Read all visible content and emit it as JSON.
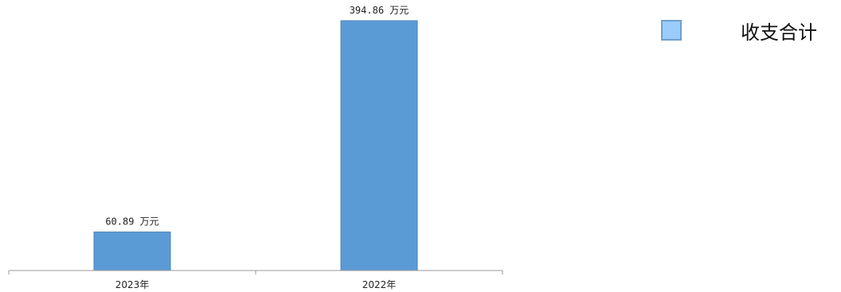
{
  "chart_data": {
    "type": "bar",
    "categories": [
      "2023年",
      "2022年"
    ],
    "series": [
      {
        "name": "收支合计",
        "values": [
          60.89,
          394.86
        ],
        "data_labels": [
          "60.89 万元",
          "394.86 万元"
        ],
        "color": "#5b9bd5"
      }
    ],
    "title": "",
    "xlabel": "",
    "ylabel": "",
    "ylim": [
      0,
      420
    ],
    "grid": false,
    "legend_position": "top-right",
    "colors": {
      "bar": "#5b9bd5",
      "bar_border": "#4a86c0",
      "axis": "#999999",
      "legend_swatch": "#99ccff"
    }
  }
}
